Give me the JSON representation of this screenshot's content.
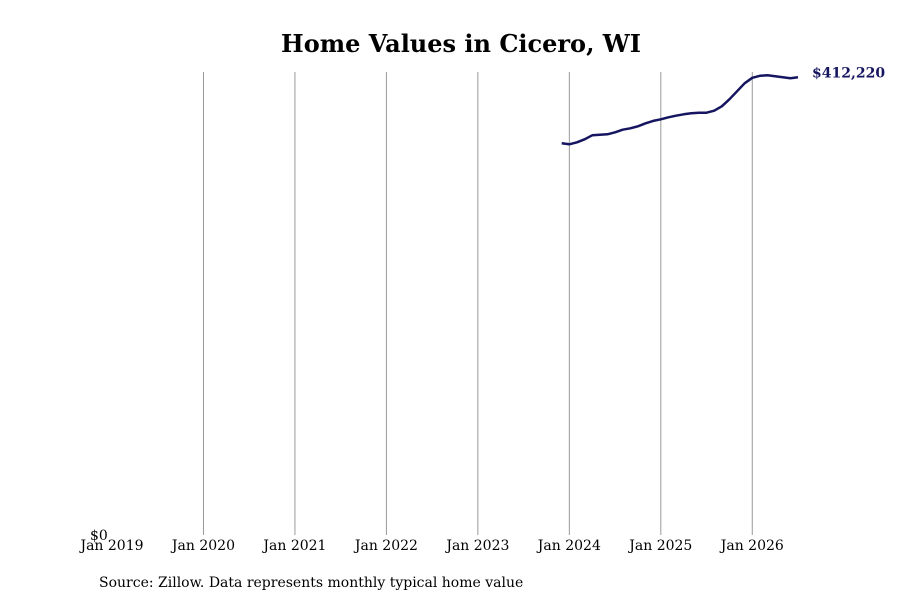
{
  "chart_data": {
    "type": "line",
    "title": "Home Values in Cicero, WI",
    "source": "Source: Zillow. Data represents monthly typical home value",
    "color": "#151560",
    "grid": true,
    "x": [
      "2023-12",
      "2024-01",
      "2024-02",
      "2024-03",
      "2024-04",
      "2024-05",
      "2024-06",
      "2024-07",
      "2024-08",
      "2024-09",
      "2024-10",
      "2024-11",
      "2024-12",
      "2025-01",
      "2025-02",
      "2025-03",
      "2025-04",
      "2025-05",
      "2025-06",
      "2025-07",
      "2025-08",
      "2025-09",
      "2025-10",
      "2025-11",
      "2025-12",
      "2026-01",
      "2026-02",
      "2026-03",
      "2026-04",
      "2026-05",
      "2026-06",
      "2026-07"
    ],
    "values": [
      352800,
      351900,
      353700,
      356400,
      360000,
      360500,
      360900,
      362700,
      365000,
      366300,
      368100,
      370800,
      373000,
      374400,
      376200,
      377600,
      378900,
      379800,
      380300,
      380300,
      382100,
      386100,
      392400,
      399600,
      406800,
      411800,
      413600,
      414000,
      413100,
      412200,
      411300,
      412220
    ],
    "value_labels": [
      null,
      null,
      null,
      null,
      null,
      null,
      null,
      null,
      null,
      null,
      null,
      null,
      null,
      null,
      null,
      null,
      null,
      null,
      null,
      null,
      null,
      null,
      null,
      null,
      null,
      null,
      null,
      null,
      null,
      null,
      null,
      "$412,220"
    ],
    "xlim": [
      "2019-01",
      "2026-07"
    ],
    "xticks": [
      {
        "value": "2019-01",
        "label": "Jan 2019"
      },
      {
        "value": "2020-01",
        "label": "Jan 2020"
      },
      {
        "value": "2021-01",
        "label": "Jan 2021"
      },
      {
        "value": "2022-01",
        "label": "Jan 2022"
      },
      {
        "value": "2023-01",
        "label": "Jan 2023"
      },
      {
        "value": "2024-01",
        "label": "Jan 2024"
      },
      {
        "value": "2025-01",
        "label": "Jan 2025"
      },
      {
        "value": "2026-01",
        "label": "Jan 2026"
      }
    ],
    "ylim": [
      0,
      417000
    ],
    "yticks": [
      {
        "value": 0,
        "label": "$0"
      }
    ]
  }
}
